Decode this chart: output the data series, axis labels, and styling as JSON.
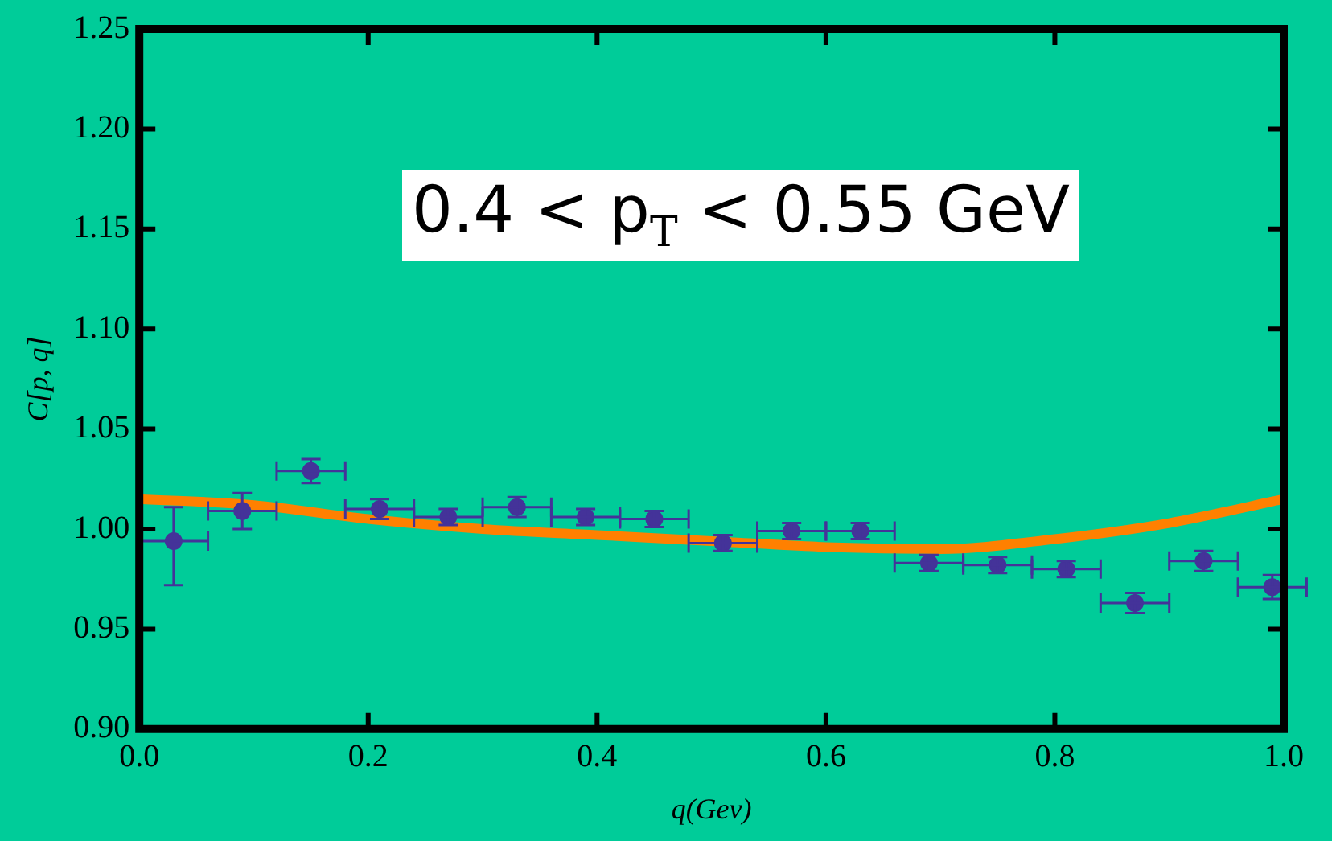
{
  "chart_data": {
    "type": "scatter",
    "xlabel": "q(Gev)",
    "ylabel": "C[p, q]",
    "annotations": [
      "0.4 < p$_{T}$ < 0.55 GeV"
    ],
    "xlim": [
      0,
      1
    ],
    "xticks": [
      {
        "value": 0,
        "label": "0.0"
      },
      {
        "value": 0.2,
        "label": "0.2"
      },
      {
        "value": 0.4,
        "label": "0.4"
      },
      {
        "value": 0.6,
        "label": "0.6"
      },
      {
        "value": 0.8,
        "label": "0.8"
      },
      {
        "value": 1,
        "label": "1.0"
      }
    ],
    "ylim": [
      0.9,
      1.25
    ],
    "yticks": [
      {
        "value": 0.9,
        "label": "0.90"
      },
      {
        "value": 0.95,
        "label": "0.95"
      },
      {
        "value": 1,
        "label": "1.00"
      },
      {
        "value": 1.05,
        "label": "1.05"
      },
      {
        "value": 1.1,
        "label": "1.10"
      },
      {
        "value": 1.15,
        "label": "1.15"
      },
      {
        "value": 1.2,
        "label": "1.20"
      },
      {
        "value": 1.25,
        "label": "1.25"
      }
    ],
    "grid": false,
    "legend": false,
    "series": [
      {
        "marker": "circle",
        "color": "#443399",
        "x": [
          0.03,
          0.09,
          0.15,
          0.21,
          0.27,
          0.33,
          0.39,
          0.45,
          0.51,
          0.57,
          0.63,
          0.69,
          0.75,
          0.81,
          0.87,
          0.93,
          0.99
        ],
        "values": [
          0.994,
          1.009,
          1.029,
          1.01,
          1.006,
          1.011,
          1.006,
          1.005,
          0.993,
          0.999,
          0.999,
          0.983,
          0.982,
          0.98,
          0.963,
          0.984,
          0.971
        ],
        "errors": [
          [
            0.972,
            1.011
          ],
          0.009,
          0.006,
          0.005,
          0.004,
          0.005,
          0.004,
          0.004,
          0.004,
          0.004,
          0.004,
          0.004,
          0.004,
          0.004,
          0.005,
          0.005,
          0.006
        ],
        "xerrors": [
          0.03,
          0.03,
          0.03,
          0.03,
          0.03,
          0.03,
          0.03,
          0.03,
          0.03,
          0.03,
          0.03,
          0.03,
          0.03,
          0.03,
          0.03,
          0.03,
          0.03
        ]
      },
      {
        "type": "line",
        "color": "#ff8000",
        "line_style": "solid",
        "x": [
          0,
          0.1,
          0.2,
          0.3,
          0.4,
          0.5,
          0.6,
          0.7,
          0.8,
          0.9,
          1.0
        ],
        "values": [
          1.015,
          1.012,
          1.005,
          1.0,
          0.997,
          0.994,
          0.991,
          0.99,
          0.995,
          1.003,
          1.015
        ]
      }
    ]
  }
}
